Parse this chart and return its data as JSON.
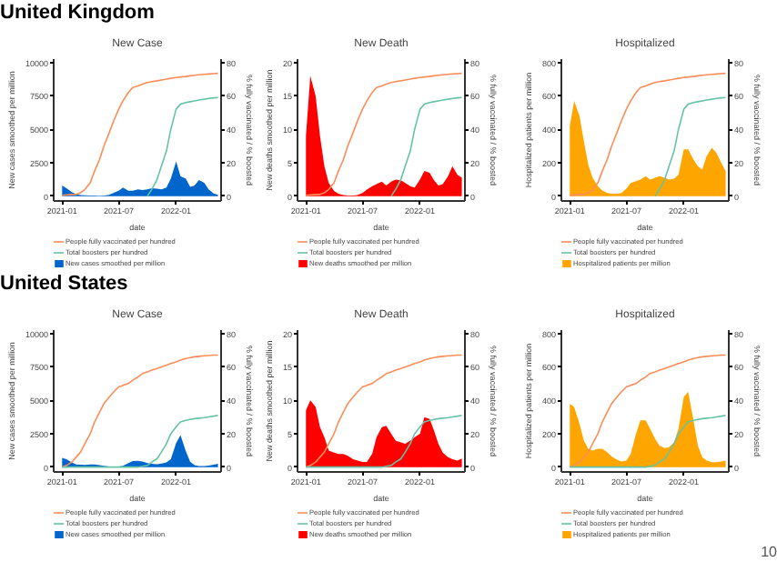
{
  "chart_data": [
    {
      "type": "area",
      "title": "New Case",
      "xlabel": "date",
      "ylabel": "New cases smoothed per million",
      "y2label": "% fully vaccinated / % boosted",
      "annotations": [
        "United Kingdom"
      ],
      "legend": "bottom",
      "xlim": [
        "2020-12-05",
        "2022-05-25"
      ],
      "xticks": [
        {
          "value": "2021-01-01",
          "label": "2021-01"
        },
        {
          "value": "2021-07-01",
          "label": "2021-07"
        },
        {
          "value": "2022-01-01",
          "label": "2022-01"
        }
      ],
      "ylim": [
        -360,
        10250
      ],
      "yticks": [
        0,
        2500,
        5000,
        7500,
        10000
      ],
      "y2lim": [
        -2.9,
        82
      ],
      "y2ticks": [
        0,
        20,
        40,
        60,
        80
      ],
      "x": [
        "2021-01-01",
        "2021-01-15",
        "2021-02-01",
        "2021-02-15",
        "2021-03-01",
        "2021-03-15",
        "2021-04-01",
        "2021-04-15",
        "2021-05-01",
        "2021-05-15",
        "2021-06-01",
        "2021-06-15",
        "2021-07-01",
        "2021-07-15",
        "2021-08-01",
        "2021-08-15",
        "2021-09-01",
        "2021-09-15",
        "2021-10-01",
        "2021-10-15",
        "2021-11-01",
        "2021-11-15",
        "2021-12-01",
        "2021-12-15",
        "2022-01-01",
        "2022-01-15",
        "2022-02-01",
        "2022-02-15",
        "2022-03-01",
        "2022-03-15",
        "2022-04-01",
        "2022-04-15",
        "2022-05-01",
        "2022-05-15"
      ],
      "series": [
        {
          "name": "People fully vaccinated per hundred",
          "type": "line",
          "axis": "y2",
          "color": "#fc8d59",
          "values": [
            0.5,
            0.7,
            1,
            1,
            2,
            4,
            8,
            15,
            22,
            30,
            38,
            45,
            52,
            57,
            62,
            65,
            66,
            67,
            68,
            68.5,
            69,
            69.5,
            70,
            70.5,
            71,
            71.3,
            71.6,
            72,
            72.3,
            72.6,
            72.9,
            73.1,
            73.3,
            73.5
          ]
        },
        {
          "name": "New cases smoothed per million",
          "type": "area",
          "color": "#0066cc",
          "values": [
            800,
            600,
            300,
            150,
            80,
            70,
            50,
            40,
            30,
            40,
            100,
            250,
            400,
            650,
            400,
            400,
            500,
            450,
            500,
            600,
            550,
            500,
            650,
            1300,
            2600,
            1500,
            1300,
            700,
            800,
            1200,
            1000,
            500,
            200,
            100
          ]
        },
        {
          "name": "Total boosters per hundred",
          "type": "line",
          "axis": "y2",
          "color": "#66c2a5",
          "values": [
            null,
            null,
            null,
            null,
            null,
            null,
            null,
            null,
            null,
            null,
            null,
            null,
            null,
            null,
            null,
            null,
            null,
            null,
            0,
            4,
            10,
            18,
            27,
            40,
            52,
            55,
            56,
            56.5,
            57,
            57.5,
            58,
            58.5,
            58.8,
            59
          ]
        }
      ]
    },
    {
      "type": "area",
      "title": "New Death",
      "xlabel": "date",
      "ylabel": "New deaths smoothed per million",
      "y2label": "% fully vaccinated / % boosted",
      "legend": "bottom",
      "xlim": [
        "2020-12-05",
        "2022-05-25"
      ],
      "xticks": [
        {
          "value": "2021-01-01",
          "label": "2021-01"
        },
        {
          "value": "2021-07-01",
          "label": "2021-07"
        },
        {
          "value": "2022-01-01",
          "label": "2022-01"
        }
      ],
      "ylim": [
        -0.7,
        20.5
      ],
      "yticks": [
        0,
        5,
        10,
        15,
        20
      ],
      "y2lim": [
        -2.9,
        82
      ],
      "y2ticks": [
        0,
        20,
        40,
        60,
        80
      ],
      "x": [
        "2021-01-01",
        "2021-01-15",
        "2021-02-01",
        "2021-02-15",
        "2021-03-01",
        "2021-03-15",
        "2021-04-01",
        "2021-04-15",
        "2021-05-01",
        "2021-05-15",
        "2021-06-01",
        "2021-06-15",
        "2021-07-01",
        "2021-07-15",
        "2021-08-01",
        "2021-08-15",
        "2021-09-01",
        "2021-09-15",
        "2021-10-01",
        "2021-10-15",
        "2021-11-01",
        "2021-11-15",
        "2021-12-01",
        "2021-12-15",
        "2022-01-01",
        "2022-01-15",
        "2022-02-01",
        "2022-02-15",
        "2022-03-01",
        "2022-03-15",
        "2022-04-01",
        "2022-04-15",
        "2022-05-01",
        "2022-05-15"
      ],
      "series": [
        {
          "name": "People fully vaccinated per hundred",
          "type": "line",
          "axis": "y2",
          "color": "#fc8d59",
          "values": [
            0.5,
            0.7,
            1,
            1,
            2,
            4,
            8,
            15,
            22,
            30,
            38,
            45,
            52,
            57,
            62,
            65,
            66,
            67,
            68,
            68.5,
            69,
            69.5,
            70,
            70.5,
            71,
            71.3,
            71.6,
            72,
            72.3,
            72.6,
            72.9,
            73.1,
            73.3,
            73.5
          ]
        },
        {
          "name": "New deaths smoothed per million",
          "type": "area",
          "color": "#ff0000",
          "values": [
            9,
            18,
            15,
            9,
            4.5,
            2,
            0.8,
            0.4,
            0.2,
            0.1,
            0.1,
            0.2,
            0.5,
            1,
            1.5,
            1.8,
            2.2,
            1.6,
            2.2,
            2.5,
            2.4,
            2,
            1.5,
            1.3,
            2.5,
            3.8,
            3.5,
            2.4,
            1.6,
            1.8,
            3,
            4.5,
            3.2,
            2.8
          ]
        },
        {
          "name": "Total boosters per hundred",
          "type": "line",
          "axis": "y2",
          "color": "#66c2a5",
          "values": [
            null,
            null,
            null,
            null,
            null,
            null,
            null,
            null,
            null,
            null,
            null,
            null,
            null,
            null,
            null,
            null,
            null,
            null,
            0,
            4,
            10,
            18,
            27,
            40,
            52,
            55,
            56,
            56.5,
            57,
            57.5,
            58,
            58.5,
            58.8,
            59
          ]
        }
      ]
    },
    {
      "type": "area",
      "title": "Hospitalized",
      "xlabel": "date",
      "ylabel": "Hospitalized patients per million",
      "y2label": "% fully vaccinated / % boosted",
      "legend": "bottom",
      "xlim": [
        "2020-12-05",
        "2022-05-25"
      ],
      "xticks": [
        {
          "value": "2021-01-01",
          "label": "2021-01"
        },
        {
          "value": "2021-07-01",
          "label": "2021-07"
        },
        {
          "value": "2022-01-01",
          "label": "2022-01"
        }
      ],
      "ylim": [
        -28,
        820
      ],
      "yticks": [
        0,
        200,
        400,
        600,
        800
      ],
      "y2lim": [
        -2.9,
        82
      ],
      "y2ticks": [
        0,
        20,
        40,
        60,
        80
      ],
      "x": [
        "2021-01-01",
        "2021-01-15",
        "2021-02-01",
        "2021-02-15",
        "2021-03-01",
        "2021-03-15",
        "2021-04-01",
        "2021-04-15",
        "2021-05-01",
        "2021-05-15",
        "2021-06-01",
        "2021-06-15",
        "2021-07-01",
        "2021-07-15",
        "2021-08-01",
        "2021-08-15",
        "2021-09-01",
        "2021-09-15",
        "2021-10-01",
        "2021-10-15",
        "2021-11-01",
        "2021-11-15",
        "2021-12-01",
        "2021-12-15",
        "2022-01-01",
        "2022-01-15",
        "2022-02-01",
        "2022-02-15",
        "2022-03-01",
        "2022-03-15",
        "2022-04-01",
        "2022-04-15",
        "2022-05-01",
        "2022-05-15"
      ],
      "series": [
        {
          "name": "People fully vaccinated per hundred",
          "type": "line",
          "axis": "y2",
          "color": "#fc8d59",
          "values": [
            0.5,
            0.7,
            1,
            1,
            2,
            4,
            8,
            15,
            22,
            30,
            38,
            45,
            52,
            57,
            62,
            65,
            66,
            67,
            68,
            68.5,
            69,
            69.5,
            70,
            70.5,
            71,
            71.3,
            71.6,
            72,
            72.3,
            72.6,
            72.9,
            73.1,
            73.3,
            73.5
          ]
        },
        {
          "name": "Hospitalized patients per million",
          "type": "area",
          "color": "#ffa500",
          "values": [
            420,
            570,
            480,
            330,
            190,
            110,
            60,
            35,
            20,
            15,
            15,
            20,
            45,
            80,
            90,
            100,
            120,
            100,
            110,
            120,
            110,
            100,
            105,
            130,
            280,
            280,
            220,
            180,
            160,
            240,
            290,
            260,
            200,
            150
          ]
        },
        {
          "name": "Total boosters per hundred",
          "type": "line",
          "axis": "y2",
          "color": "#66c2a5",
          "values": [
            null,
            null,
            null,
            null,
            null,
            null,
            null,
            null,
            null,
            null,
            null,
            null,
            null,
            null,
            null,
            null,
            null,
            null,
            0,
            4,
            10,
            18,
            27,
            40,
            52,
            55,
            56,
            56.5,
            57,
            57.5,
            58,
            58.5,
            58.8,
            59
          ]
        }
      ]
    },
    {
      "type": "area",
      "title": "New Case",
      "xlabel": "date",
      "ylabel": "New cases smoothed per million",
      "y2label": "% fully vaccinated / % boosted",
      "annotations": [
        "United States"
      ],
      "legend": "bottom",
      "xlim": [
        "2020-12-05",
        "2022-05-25"
      ],
      "xticks": [
        {
          "value": "2021-01-01",
          "label": "2021-01"
        },
        {
          "value": "2021-07-01",
          "label": "2021-07"
        },
        {
          "value": "2022-01-01",
          "label": "2022-01"
        }
      ],
      "ylim": [
        -360,
        10250
      ],
      "yticks": [
        0,
        2500,
        5000,
        7500,
        10000
      ],
      "y2lim": [
        -2.9,
        82
      ],
      "y2ticks": [
        0,
        20,
        40,
        60,
        80
      ],
      "x": [
        "2021-01-01",
        "2021-01-15",
        "2021-02-01",
        "2021-02-15",
        "2021-03-01",
        "2021-03-15",
        "2021-04-01",
        "2021-04-15",
        "2021-05-01",
        "2021-05-15",
        "2021-06-01",
        "2021-06-15",
        "2021-07-01",
        "2021-07-15",
        "2021-08-01",
        "2021-08-15",
        "2021-09-01",
        "2021-09-15",
        "2021-10-01",
        "2021-10-15",
        "2021-11-01",
        "2021-11-15",
        "2021-12-01",
        "2021-12-15",
        "2022-01-01",
        "2022-01-15",
        "2022-02-01",
        "2022-02-15",
        "2022-03-01",
        "2022-03-15",
        "2022-04-01",
        "2022-04-15",
        "2022-05-01",
        "2022-05-15"
      ],
      "series": [
        {
          "name": "People fully vaccinated per hundred",
          "type": "line",
          "axis": "y2",
          "color": "#fc8d59",
          "values": [
            0,
            1,
            3,
            6,
            9,
            14,
            20,
            27,
            33,
            38,
            42,
            45,
            48,
            49,
            50,
            52,
            54,
            56,
            57,
            58,
            59,
            60,
            61,
            62,
            63,
            64,
            65,
            65.5,
            66,
            66.3,
            66.6,
            66.8,
            67,
            67
          ]
        },
        {
          "name": "New cases smoothed per million",
          "type": "area",
          "color": "#0066cc",
          "values": [
            700,
            600,
            350,
            200,
            180,
            170,
            200,
            200,
            150,
            100,
            50,
            40,
            40,
            100,
            300,
            450,
            480,
            420,
            300,
            250,
            220,
            270,
            350,
            600,
            1800,
            2400,
            1200,
            400,
            150,
            90,
            80,
            110,
            180,
            250
          ]
        },
        {
          "name": "Total boosters per hundred",
          "type": "line",
          "axis": "y2",
          "color": "#66c2a5",
          "values": [
            0,
            0,
            0,
            0,
            0,
            0,
            0,
            0,
            0,
            0,
            0,
            0,
            0,
            0,
            0,
            0,
            0,
            0.5,
            1,
            3,
            5,
            9,
            14,
            20,
            24,
            27,
            28,
            28.5,
            29,
            29.3,
            29.6,
            30,
            30.5,
            31
          ]
        }
      ]
    },
    {
      "type": "area",
      "title": "New Death",
      "xlabel": "date",
      "ylabel": "New deaths smoothed per million",
      "y2label": "% fully vaccinated / % boosted",
      "legend": "bottom",
      "xlim": [
        "2020-12-05",
        "2022-05-25"
      ],
      "xticks": [
        {
          "value": "2021-01-01",
          "label": "2021-01"
        },
        {
          "value": "2021-07-01",
          "label": "2021-07"
        },
        {
          "value": "2022-01-01",
          "label": "2022-01"
        }
      ],
      "ylim": [
        -0.7,
        20.5
      ],
      "yticks": [
        0,
        5,
        10,
        15,
        20
      ],
      "y2lim": [
        -2.9,
        82
      ],
      "y2ticks": [
        0,
        20,
        40,
        60,
        80
      ],
      "x": [
        "2021-01-01",
        "2021-01-15",
        "2021-02-01",
        "2021-02-15",
        "2021-03-01",
        "2021-03-15",
        "2021-04-01",
        "2021-04-15",
        "2021-05-01",
        "2021-05-15",
        "2021-06-01",
        "2021-06-15",
        "2021-07-01",
        "2021-07-15",
        "2021-08-01",
        "2021-08-15",
        "2021-09-01",
        "2021-09-15",
        "2021-10-01",
        "2021-10-15",
        "2021-11-01",
        "2021-11-15",
        "2021-12-01",
        "2021-12-15",
        "2022-01-01",
        "2022-01-15",
        "2022-02-01",
        "2022-02-15",
        "2022-03-01",
        "2022-03-15",
        "2022-04-01",
        "2022-04-15",
        "2022-05-01",
        "2022-05-15"
      ],
      "series": [
        {
          "name": "People fully vaccinated per hundred",
          "type": "line",
          "axis": "y2",
          "color": "#fc8d59",
          "values": [
            0,
            1,
            3,
            6,
            9,
            14,
            20,
            27,
            33,
            38,
            42,
            45,
            48,
            49,
            50,
            52,
            54,
            56,
            57,
            58,
            59,
            60,
            61,
            62,
            63,
            64,
            65,
            65.5,
            66,
            66.3,
            66.6,
            66.8,
            67,
            67
          ]
        },
        {
          "name": "New deaths smoothed per million",
          "type": "area",
          "color": "#ff0000",
          "values": [
            8.5,
            10,
            9,
            6,
            4.5,
            2.5,
            2.2,
            2,
            2,
            1.7,
            1.2,
            1,
            0.8,
            0.8,
            2,
            4.5,
            6,
            6.2,
            5,
            4,
            3.7,
            3.5,
            4,
            4.5,
            5,
            7.5,
            7.2,
            5.5,
            3.5,
            2.2,
            1.5,
            1.2,
            1,
            1.3
          ]
        },
        {
          "name": "Total boosters per hundred",
          "type": "line",
          "axis": "y2",
          "color": "#66c2a5",
          "values": [
            0,
            0,
            0,
            0,
            0,
            0,
            0,
            0,
            0,
            0,
            0,
            0,
            0,
            0,
            0,
            0,
            0,
            0.5,
            1,
            3,
            5,
            9,
            14,
            20,
            24,
            27,
            28,
            28.5,
            29,
            29.3,
            29.6,
            30,
            30.5,
            31
          ]
        }
      ]
    },
    {
      "type": "area",
      "title": "Hospitalized",
      "xlabel": "date",
      "ylabel": "Hospitalized patients per million",
      "y2label": "% fully vaccinated / % boosted",
      "annotations": [
        "10"
      ],
      "legend": "bottom",
      "xlim": [
        "2020-12-05",
        "2022-05-25"
      ],
      "xticks": [
        {
          "value": "2021-01-01",
          "label": "2021-01"
        },
        {
          "value": "2021-07-01",
          "label": "2021-07"
        },
        {
          "value": "2022-01-01",
          "label": "2022-01"
        }
      ],
      "ylim": [
        -28,
        820
      ],
      "yticks": [
        0,
        200,
        400,
        600,
        800
      ],
      "y2lim": [
        -2.9,
        82
      ],
      "y2ticks": [
        0,
        20,
        40,
        60,
        80
      ],
      "x": [
        "2021-01-01",
        "2021-01-15",
        "2021-02-01",
        "2021-02-15",
        "2021-03-01",
        "2021-03-15",
        "2021-04-01",
        "2021-04-15",
        "2021-05-01",
        "2021-05-15",
        "2021-06-01",
        "2021-06-15",
        "2021-07-01",
        "2021-07-15",
        "2021-08-01",
        "2021-08-15",
        "2021-09-01",
        "2021-09-15",
        "2021-10-01",
        "2021-10-15",
        "2021-11-01",
        "2021-11-15",
        "2021-12-01",
        "2021-12-15",
        "2022-01-01",
        "2022-01-15",
        "2022-02-01",
        "2022-02-15",
        "2022-03-01",
        "2022-03-15",
        "2022-04-01",
        "2022-04-15",
        "2022-05-01",
        "2022-05-15"
      ],
      "series": [
        {
          "name": "People fully vaccinated per hundred",
          "type": "line",
          "axis": "y2",
          "color": "#fc8d59",
          "values": [
            0,
            1,
            3,
            6,
            9,
            14,
            20,
            27,
            33,
            38,
            42,
            45,
            48,
            49,
            50,
            52,
            54,
            56,
            57,
            58,
            59,
            60,
            61,
            62,
            63,
            64,
            65,
            65.5,
            66,
            66.3,
            66.6,
            66.8,
            67,
            67
          ]
        },
        {
          "name": "Hospitalized patients per million",
          "type": "area",
          "color": "#ffa500",
          "values": [
            380,
            360,
            260,
            160,
            110,
            100,
            110,
            110,
            90,
            65,
            45,
            35,
            40,
            80,
            200,
            280,
            280,
            230,
            170,
            130,
            115,
            120,
            150,
            230,
            420,
            450,
            280,
            130,
            60,
            40,
            30,
            30,
            35,
            40
          ]
        },
        {
          "name": "Total boosters per hundred",
          "type": "line",
          "axis": "y2",
          "color": "#66c2a5",
          "values": [
            0,
            0,
            0,
            0,
            0,
            0,
            0,
            0,
            0,
            0,
            0,
            0,
            0,
            0,
            0,
            0,
            0,
            0.5,
            1,
            3,
            5,
            9,
            14,
            20,
            24,
            27,
            28,
            28.5,
            29,
            29.3,
            29.6,
            30,
            30.5,
            31
          ]
        }
      ]
    }
  ]
}
